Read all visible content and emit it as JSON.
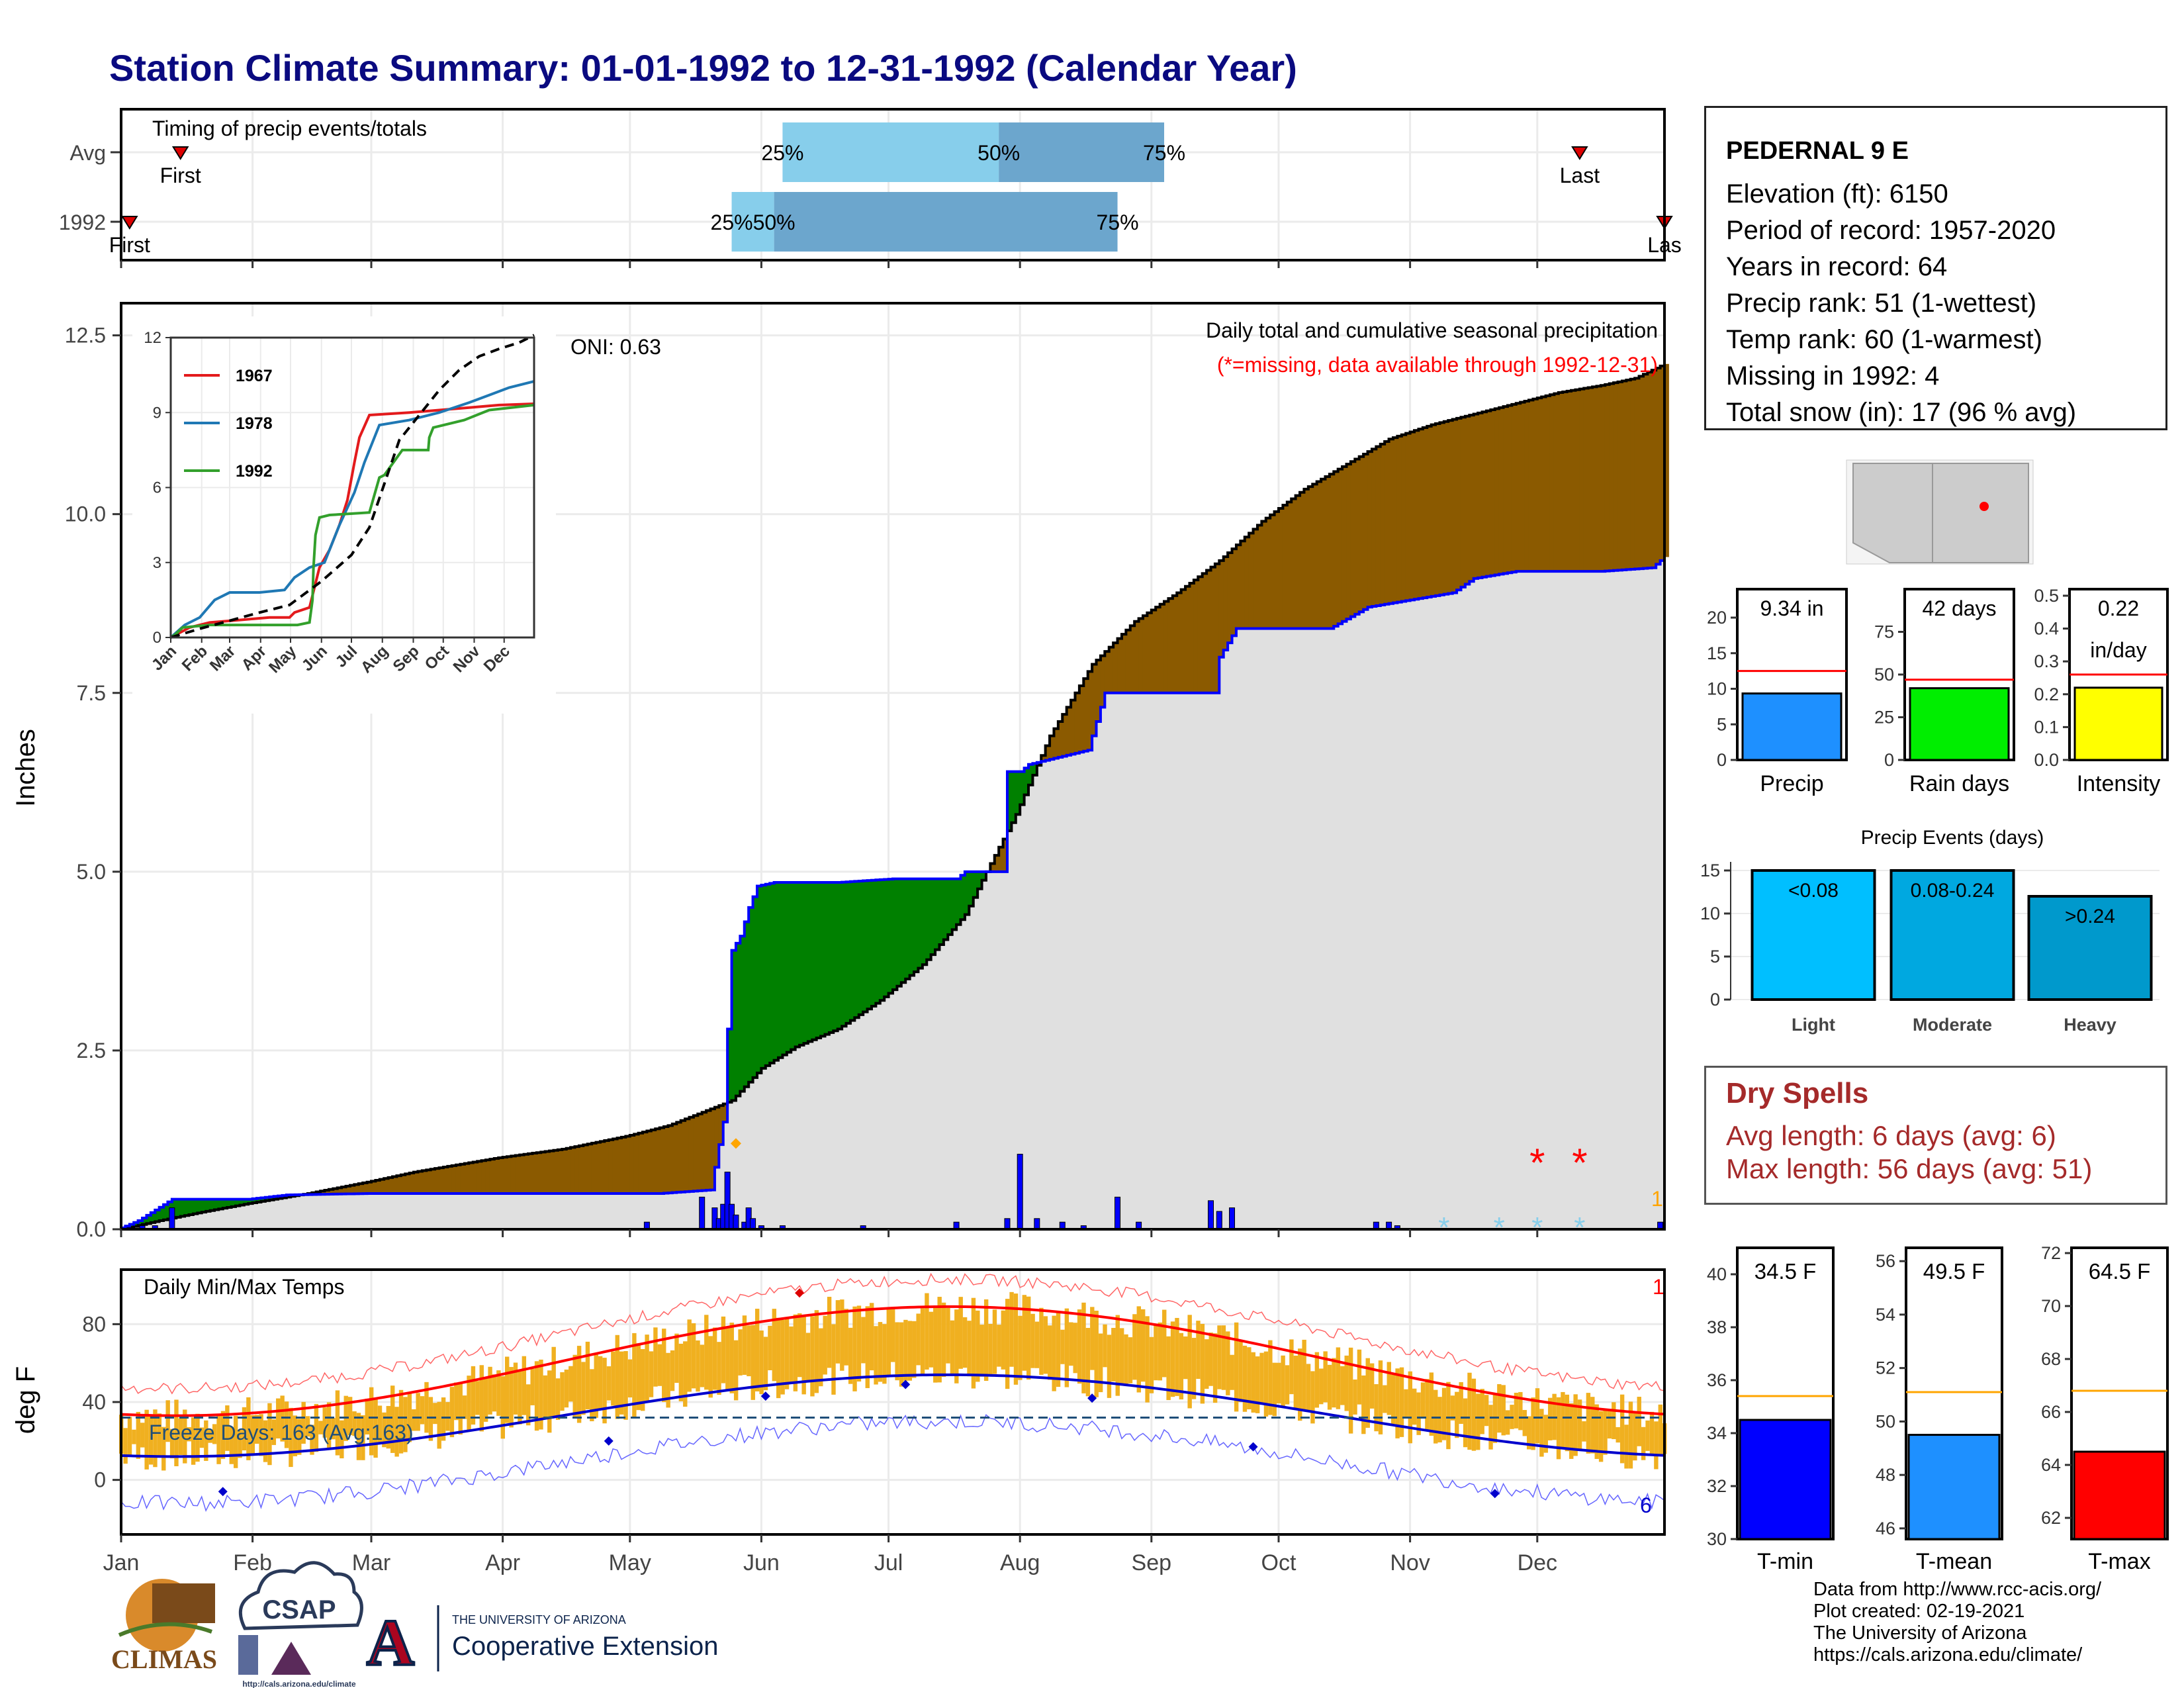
{
  "title": "Station Climate Summary: 01-01-1992 to 12-31-1992 (Calendar Year)",
  "colors": {
    "title": "#0a0a80",
    "deficit_brown": "#8b5a00",
    "surplus_green": "#008000",
    "climo_gray": "#e0e0e0",
    "obs_blue": "#0000ff",
    "temp_bar": "#f0b020",
    "tmax_line": "#ff0000",
    "tmin_line": "#0000cc",
    "dry_spells": "#a52a2a"
  },
  "station": {
    "name": "PEDERNAL 9 E",
    "lines": [
      "Elevation (ft): 6150",
      "Period of record: 1957-2020",
      "Years in record: 64",
      "Precip rank: 51 (1-wettest)",
      "Temp rank: 60 (1-warmest)",
      "Missing in 1992: 4",
      "Total snow (in): 17 (96 % avg)"
    ]
  },
  "timing": {
    "label": "Timing of precip events/totals",
    "rows": [
      "Avg",
      "1992"
    ],
    "avg": {
      "first_day": 15,
      "p25_day": 157,
      "p50_day": 208,
      "p75_day": 247,
      "last_day": 345
    },
    "y1992": {
      "first_day": 3,
      "p25_day": 145,
      "p50_day": 155,
      "p75_day": 236,
      "last_day": 365
    },
    "pct_labels": [
      "25%",
      "50%",
      "75%"
    ],
    "first_label": "First",
    "last_label": "Last",
    "last_label_clipped": "Las"
  },
  "months": [
    "Jan",
    "Feb",
    "Mar",
    "Apr",
    "May",
    "Jun",
    "Jul",
    "Aug",
    "Sep",
    "Oct",
    "Nov",
    "Dec"
  ],
  "precip_panel": {
    "ylabel": "Inches",
    "yticks": [
      "0.0",
      "2.5",
      "5.0",
      "7.5",
      "10.0",
      "12.5"
    ],
    "ymax": 12.95,
    "annotation_title": "Daily total and cumulative seasonal precipitation",
    "annotation_missing": "(*=missing, data available through 1992-12-31)",
    "oni": "ONI: 0.63",
    "corner_count": "1",
    "climo_cum": [
      [
        1,
        0
      ],
      [
        10,
        0.12
      ],
      [
        20,
        0.24
      ],
      [
        31,
        0.36
      ],
      [
        45,
        0.5
      ],
      [
        59,
        0.66
      ],
      [
        70,
        0.8
      ],
      [
        80,
        0.9
      ],
      [
        90,
        1.0
      ],
      [
        105,
        1.12
      ],
      [
        120,
        1.3
      ],
      [
        130,
        1.45
      ],
      [
        145,
        1.8
      ],
      [
        152,
        2.25
      ],
      [
        160,
        2.55
      ],
      [
        170,
        2.8
      ],
      [
        180,
        3.2
      ],
      [
        190,
        3.7
      ],
      [
        200,
        4.4
      ],
      [
        205,
        5.0
      ],
      [
        212,
        5.8
      ],
      [
        220,
        6.9
      ],
      [
        230,
        7.9
      ],
      [
        240,
        8.5
      ],
      [
        250,
        8.9
      ],
      [
        260,
        9.35
      ],
      [
        270,
        9.9
      ],
      [
        280,
        10.35
      ],
      [
        290,
        10.7
      ],
      [
        300,
        11.05
      ],
      [
        310,
        11.25
      ],
      [
        320,
        11.4
      ],
      [
        330,
        11.55
      ],
      [
        340,
        11.7
      ],
      [
        350,
        11.8
      ],
      [
        358,
        11.9
      ],
      [
        365,
        12.1
      ]
    ],
    "obs_cum": [
      [
        1,
        0.02
      ],
      [
        5,
        0.12
      ],
      [
        13,
        0.42
      ],
      [
        31,
        0.42
      ],
      [
        40,
        0.48
      ],
      [
        59,
        0.5
      ],
      [
        90,
        0.5
      ],
      [
        120,
        0.5
      ],
      [
        128,
        0.5
      ],
      [
        140,
        0.55
      ],
      [
        143,
        1.5
      ],
      [
        144,
        2.8
      ],
      [
        145,
        3.9
      ],
      [
        147,
        4.1
      ],
      [
        149,
        4.5
      ],
      [
        151,
        4.8
      ],
      [
        155,
        4.85
      ],
      [
        170,
        4.85
      ],
      [
        183,
        4.9
      ],
      [
        198,
        4.9
      ],
      [
        200,
        5.0
      ],
      [
        209,
        5.0
      ],
      [
        210,
        6.4
      ],
      [
        213,
        6.4
      ],
      [
        215,
        6.5
      ],
      [
        229,
        6.7
      ],
      [
        233,
        7.5
      ],
      [
        234,
        7.5
      ],
      [
        244,
        7.5
      ],
      [
        259,
        7.5
      ],
      [
        260,
        8.0
      ],
      [
        264,
        8.4
      ],
      [
        286,
        8.4
      ],
      [
        295,
        8.7
      ],
      [
        305,
        8.8
      ],
      [
        315,
        8.9
      ],
      [
        320,
        9.1
      ],
      [
        330,
        9.2
      ],
      [
        350,
        9.2
      ],
      [
        362,
        9.25
      ],
      [
        365,
        9.4
      ]
    ],
    "daily": [
      [
        6,
        0.05
      ],
      [
        9,
        0.05
      ],
      [
        13,
        0.3
      ],
      [
        125,
        0.1
      ],
      [
        138,
        0.45
      ],
      [
        141,
        0.3
      ],
      [
        142,
        0.15
      ],
      [
        143,
        0.35
      ],
      [
        144,
        0.8
      ],
      [
        145,
        0.35
      ],
      [
        146,
        0.2
      ],
      [
        148,
        0.1
      ],
      [
        149,
        0.3
      ],
      [
        150,
        0.15
      ],
      [
        152,
        0.05
      ],
      [
        157,
        0.05
      ],
      [
        176,
        0.05
      ],
      [
        198,
        0.1
      ],
      [
        210,
        0.15
      ],
      [
        213,
        1.05
      ],
      [
        217,
        0.15
      ],
      [
        223,
        0.1
      ],
      [
        228,
        0.05
      ],
      [
        236,
        0.45
      ],
      [
        241,
        0.1
      ],
      [
        258,
        0.4
      ],
      [
        260,
        0.25
      ],
      [
        263,
        0.3
      ],
      [
        297,
        0.1
      ],
      [
        300,
        0.1
      ],
      [
        302,
        0.05
      ],
      [
        364,
        0.1
      ]
    ],
    "missing_marks": [
      335,
      345
    ],
    "snow_marks": [
      313,
      326,
      335,
      345
    ],
    "diamond": 146
  },
  "inset": {
    "yticks": [
      "0",
      "3",
      "6",
      "9",
      "12"
    ],
    "series": [
      {
        "name": "1967",
        "color": "#e31a1c",
        "points": [
          [
            1,
            0
          ],
          [
            20,
            0.4
          ],
          [
            40,
            0.6
          ],
          [
            70,
            0.7
          ],
          [
            100,
            0.8
          ],
          [
            120,
            0.8
          ],
          [
            125,
            1.0
          ],
          [
            140,
            1.2
          ],
          [
            150,
            2.8
          ],
          [
            160,
            3.5
          ],
          [
            170,
            4.5
          ],
          [
            178,
            5.5
          ],
          [
            185,
            7
          ],
          [
            190,
            8
          ],
          [
            200,
            8.9
          ],
          [
            240,
            9.0
          ],
          [
            270,
            9.1
          ],
          [
            300,
            9.2
          ],
          [
            330,
            9.3
          ],
          [
            365,
            9.35
          ]
        ]
      },
      {
        "name": "1978",
        "color": "#1f78b4",
        "points": [
          [
            1,
            0
          ],
          [
            15,
            0.5
          ],
          [
            30,
            0.8
          ],
          [
            45,
            1.5
          ],
          [
            60,
            1.8
          ],
          [
            90,
            1.8
          ],
          [
            115,
            1.9
          ],
          [
            125,
            2.4
          ],
          [
            140,
            2.8
          ],
          [
            155,
            3.0
          ],
          [
            170,
            4.5
          ],
          [
            185,
            5.8
          ],
          [
            195,
            7
          ],
          [
            210,
            8.5
          ],
          [
            240,
            8.7
          ],
          [
            270,
            9.0
          ],
          [
            300,
            9.4
          ],
          [
            320,
            9.7
          ],
          [
            340,
            10.0
          ],
          [
            365,
            10.25
          ]
        ]
      },
      {
        "name": "1992",
        "color": "#33a02c",
        "points": [
          [
            1,
            0
          ],
          [
            5,
            0.1
          ],
          [
            13,
            0.4
          ],
          [
            40,
            0.5
          ],
          [
            90,
            0.5
          ],
          [
            128,
            0.5
          ],
          [
            140,
            0.6
          ],
          [
            143,
            1.5
          ],
          [
            144,
            2.8
          ],
          [
            146,
            4.1
          ],
          [
            150,
            4.8
          ],
          [
            160,
            4.9
          ],
          [
            200,
            5.0
          ],
          [
            210,
            6.4
          ],
          [
            215,
            6.5
          ],
          [
            233,
            7.5
          ],
          [
            259,
            7.5
          ],
          [
            260,
            8.0
          ],
          [
            264,
            8.4
          ],
          [
            295,
            8.7
          ],
          [
            320,
            9.1
          ],
          [
            365,
            9.3
          ]
        ]
      },
      {
        "name": "",
        "color": "#000000",
        "dashed": true,
        "points": [
          [
            1,
            0
          ],
          [
            31,
            0.36
          ],
          [
            59,
            0.66
          ],
          [
            90,
            1.0
          ],
          [
            120,
            1.3
          ],
          [
            152,
            2.25
          ],
          [
            182,
            3.3
          ],
          [
            200,
            4.4
          ],
          [
            212,
            5.8
          ],
          [
            230,
            7.9
          ],
          [
            250,
            8.9
          ],
          [
            270,
            9.9
          ],
          [
            290,
            10.7
          ],
          [
            310,
            11.25
          ],
          [
            330,
            11.55
          ],
          [
            350,
            11.8
          ],
          [
            365,
            12.1
          ]
        ]
      }
    ]
  },
  "temp_panel": {
    "ylabel": "deg F",
    "label": "Daily Min/Max Temps",
    "freeze_label": "Freeze Days: 163 (Avg:163)",
    "yticks": [
      "0",
      "40",
      "80"
    ],
    "ymin": -28,
    "ymax": 108,
    "record_max_count": "1",
    "record_min_count": "6",
    "freeze_line": 32
  },
  "bar_charts": {
    "precip": {
      "label": "Precip",
      "value_label": "9.34 in",
      "value": 9.34,
      "avg": 12.5,
      "ymax": 24,
      "yticks": [
        "0",
        "5",
        "10",
        "15",
        "20"
      ],
      "color": "#1e90ff"
    },
    "rain_days": {
      "label": "Rain days",
      "value_label": "42 days",
      "value": 42,
      "avg": 47,
      "ymax": 100,
      "yticks": [
        "0",
        "25",
        "50",
        "75"
      ],
      "color": "#00ee00"
    },
    "intensity": {
      "label": "Intensity",
      "value_label": "0.22",
      "value_label2": "in/day",
      "value": 0.22,
      "avg": 0.26,
      "ymax": 0.52,
      "yticks": [
        "0.0",
        "0.1",
        "0.2",
        "0.3",
        "0.4",
        "0.5"
      ],
      "color": "#ffff00"
    }
  },
  "precip_events": {
    "title": "Precip Events (days)",
    "yticks": [
      "0",
      "5",
      "10",
      "15"
    ],
    "ymax": 16,
    "categories": [
      "Light",
      "Moderate",
      "Heavy"
    ],
    "ranges": [
      "<0.08",
      "0.08-0.24",
      ">0.24"
    ],
    "values": [
      15,
      15,
      12
    ],
    "colors": [
      "#00bfff",
      "#00a8e0",
      "#0099cc"
    ]
  },
  "dry_spells": {
    "title": "Dry Spells",
    "avg_line": "Avg length: 6 days (avg: 6)",
    "max_line": "Max length: 56 days (avg: 51)"
  },
  "temp_bars": {
    "tmin": {
      "label": "T-min",
      "value_label": "34.5 F",
      "value": 34.5,
      "avg": 35.4,
      "ymin": 30,
      "ymax": 41,
      "yticks": [
        "30",
        "32",
        "34",
        "36",
        "38",
        "40"
      ],
      "color": "#0000ff"
    },
    "tmean": {
      "label": "T-mean",
      "value_label": "49.5 F",
      "value": 49.5,
      "avg": 51.1,
      "ymin": 45.6,
      "ymax": 56.5,
      "yticks": [
        "46",
        "48",
        "50",
        "52",
        "54",
        "56"
      ],
      "color": "#1e90ff"
    },
    "tmax": {
      "label": "T-max",
      "value_label": "64.5 F",
      "value": 64.5,
      "avg": 66.8,
      "ymin": 61.2,
      "ymax": 72.2,
      "yticks": [
        "62",
        "64",
        "66",
        "68",
        "70",
        "72"
      ],
      "color": "#ff0000"
    }
  },
  "credits": [
    "Data from http://www.rcc-acis.org/",
    "Plot created: 02-19-2021",
    "The University of Arizona",
    "https://cals.arizona.edu/climate/"
  ],
  "logos": {
    "climas": "CLIMAS",
    "csap": "CSAP",
    "csap_url": "http://cals.arizona.edu/climate",
    "ua_line1": "THE UNIVERSITY OF ARIZONA",
    "ua_line2": "Cooperative Extension"
  }
}
